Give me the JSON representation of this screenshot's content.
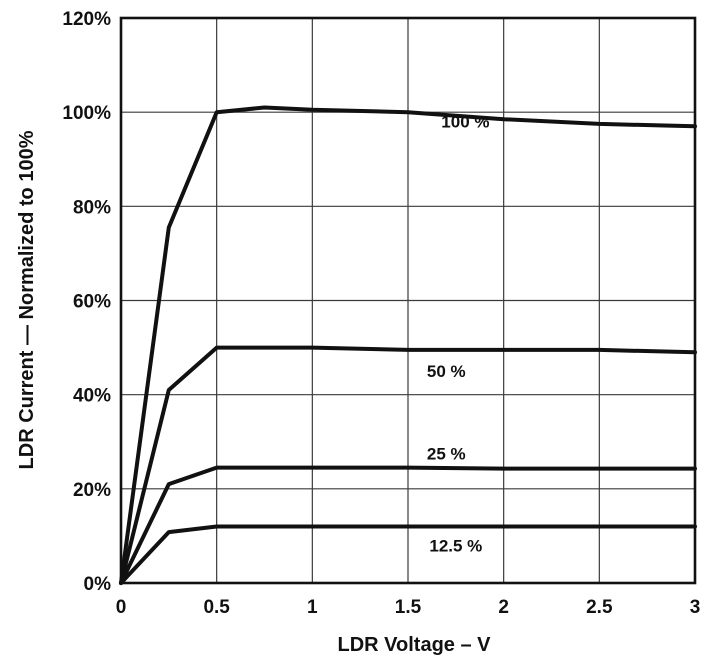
{
  "chart_data": {
    "type": "line",
    "title": "",
    "xlabel": "LDR Voltage – V",
    "ylabel": "LDR Current — Normalized to 100%",
    "xlim": [
      0,
      3
    ],
    "ylim": [
      0,
      120
    ],
    "grid": true,
    "legend": "none",
    "x_ticks": [
      "0",
      "0.5",
      "1",
      "1.5",
      "2",
      "2.5",
      "3"
    ],
    "y_ticks": [
      "0%",
      "20%",
      "40%",
      "60%",
      "80%",
      "100%",
      "120%"
    ],
    "series": [
      {
        "name": "100 %",
        "x": [
          0,
          0.25,
          0.5,
          0.75,
          1.0,
          1.5,
          2.0,
          2.5,
          3.0
        ],
        "y": [
          0,
          75.5,
          100,
          101,
          100.5,
          100,
          98.5,
          97.5,
          97
        ]
      },
      {
        "name": "50 %",
        "x": [
          0,
          0.25,
          0.5,
          1.0,
          1.5,
          2.0,
          2.5,
          3.0
        ],
        "y": [
          0,
          41,
          50,
          50,
          49.5,
          49.5,
          49.5,
          49
        ]
      },
      {
        "name": "25 %",
        "x": [
          0,
          0.25,
          0.5,
          1.0,
          1.5,
          2.0,
          2.5,
          3.0
        ],
        "y": [
          0,
          21,
          24.5,
          24.5,
          24.5,
          24.3,
          24.3,
          24.3
        ]
      },
      {
        "name": "12.5 %",
        "x": [
          0,
          0.25,
          0.5,
          1.0,
          1.5,
          2.0,
          2.5,
          3.0
        ],
        "y": [
          0,
          10.8,
          12,
          12,
          12,
          12,
          12,
          12
        ]
      }
    ],
    "series_label_positions": [
      {
        "x": 1.8,
        "y": 98
      },
      {
        "x": 1.7,
        "y": 45
      },
      {
        "x": 1.7,
        "y": 27.5
      },
      {
        "x": 1.75,
        "y": 8
      }
    ]
  }
}
